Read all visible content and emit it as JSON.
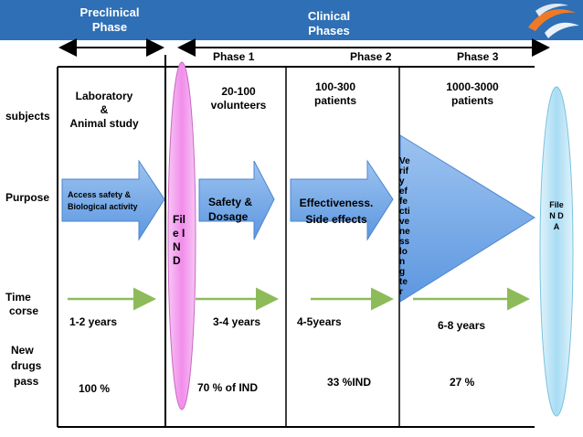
{
  "header": {
    "preclinical_line1": "Preclinical",
    "preclinical_line2": "Phase",
    "clinical_line1": "Clinical",
    "clinical_line2": "Phases"
  },
  "phases": {
    "phase1": "Phase 1",
    "phase2": "Phase 2",
    "phase3": "Phase 3"
  },
  "rows": {
    "subjects": "subjects",
    "purpose": "Purpose",
    "time_line1": "Time",
    "time_line2": "corse",
    "pass_line1": "New",
    "pass_line2": "drugs",
    "pass_line3": "pass"
  },
  "subjects": {
    "preclinical_line1": "Laboratory",
    "preclinical_line2": "&",
    "preclinical_line3": "Animal study",
    "phase1_line1": "20-100",
    "phase1_line2": "volunteers",
    "phase2_line1": "100-300",
    "phase2_line2": "patients",
    "phase3_line1": "1000-3000",
    "phase3_line2": "patients"
  },
  "purpose": {
    "preclinical_line1": "Access safety &",
    "preclinical_line2": "Biological activity",
    "phase1_line1": "Safety &",
    "phase1_line2": "Dosage",
    "phase2_line1": "Effectiveness.",
    "phase2_line2": "Side effects",
    "phase3_vertical": "Verify effectiveness long ter"
  },
  "ind_file": "File IND",
  "nda_file": "File N D A",
  "time": {
    "preclinical": "1-2 years",
    "phase1": "3-4 years",
    "phase2": "4-5years",
    "phase3": "6-8 years"
  },
  "pass": {
    "preclinical": "100 %",
    "phase1": "70 % of IND",
    "phase2": "33 %IND",
    "phase3": "27 %"
  },
  "colors": {
    "header_blue": "#2f6fb5",
    "arrow_blue": "#6fa6e8",
    "pink_oval": "#f4a8f0",
    "cyan_oval": "#bfe6f7",
    "green_arrow": "#8dbb5a",
    "logo_orange": "#f07a24"
  },
  "icons": {
    "logo": "swirl-logo-icon"
  }
}
